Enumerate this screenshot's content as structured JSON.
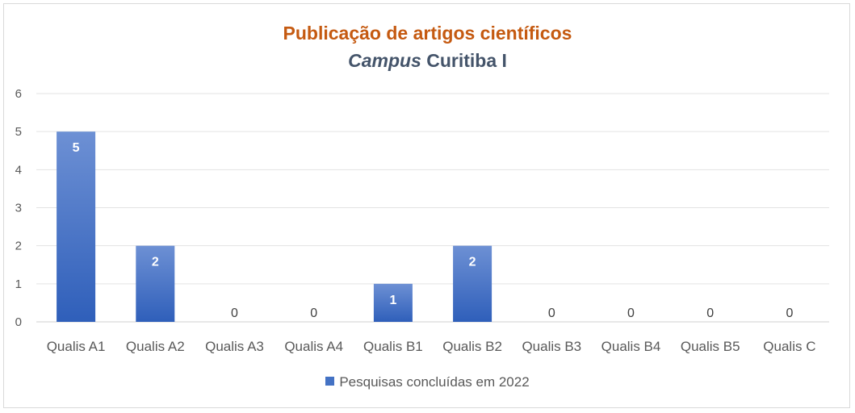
{
  "chart_data": {
    "type": "bar",
    "title": "Publicação de artigos científicos",
    "subtitle_italic": "Campus",
    "subtitle_rest": " Curitiba I",
    "categories": [
      "Qualis A1",
      "Qualis A2",
      "Qualis A3",
      "Qualis A4",
      "Qualis B1",
      "Qualis B2",
      "Qualis B3",
      "Qualis B4",
      "Qualis B5",
      "Qualis C"
    ],
    "series": [
      {
        "name": "Pesquisas concluídas em 2022",
        "values": [
          5,
          2,
          0,
          0,
          1,
          2,
          0,
          0,
          0,
          0
        ]
      }
    ],
    "ylim": [
      0,
      6
    ],
    "yticks": [
      0,
      1,
      2,
      3,
      4,
      5,
      6
    ],
    "grid": true,
    "legend_position": "bottom",
    "colors": {
      "bar_top": "#6d90d4",
      "bar_bottom": "#2f5fba",
      "title": "#c55a11",
      "subtitle": "#44546a"
    }
  }
}
